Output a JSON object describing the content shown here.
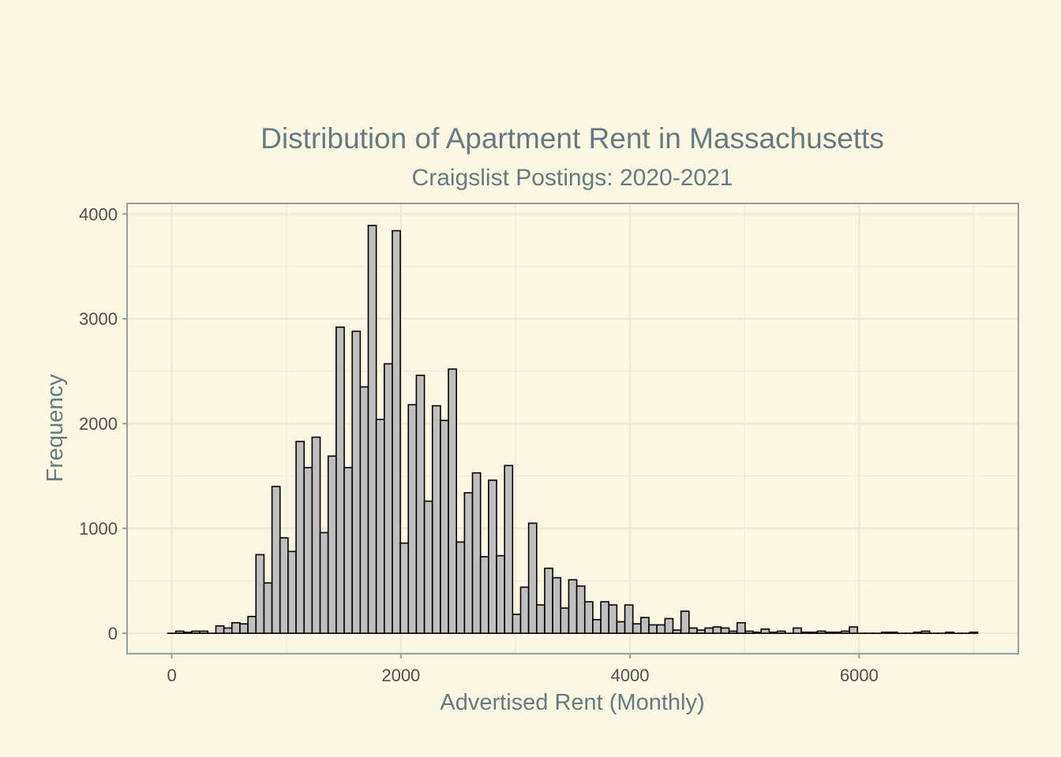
{
  "chart_data": {
    "type": "bar",
    "title": "Distribution of Apartment Rent in Massachusetts",
    "subtitle": "Craigslist Postings: 2020-2021",
    "xlabel": "Advertised Rent (Monthly)",
    "ylabel": "Frequency",
    "xlim": [
      -390,
      7390
    ],
    "ylim": [
      -195,
      4100
    ],
    "x_ticks": [
      0,
      2000,
      4000,
      6000
    ],
    "y_ticks": [
      0,
      1000,
      2000,
      3000,
      4000
    ],
    "grid": true,
    "bin_width": 70,
    "bin_start": -35,
    "values": [
      0,
      20,
      10,
      20,
      20,
      0,
      70,
      50,
      100,
      90,
      160,
      750,
      480,
      1400,
      910,
      780,
      1830,
      1580,
      1870,
      960,
      1690,
      2920,
      1580,
      2880,
      2350,
      3890,
      2040,
      2570,
      3840,
      860,
      2180,
      2460,
      1260,
      2170,
      2030,
      2520,
      870,
      1340,
      1530,
      730,
      1460,
      740,
      1600,
      180,
      440,
      1050,
      270,
      620,
      530,
      240,
      510,
      450,
      300,
      130,
      300,
      270,
      110,
      270,
      90,
      150,
      80,
      80,
      140,
      30,
      210,
      50,
      30,
      50,
      60,
      50,
      20,
      100,
      20,
      10,
      40,
      10,
      20,
      0,
      50,
      10,
      10,
      20,
      10,
      10,
      20,
      60,
      0,
      0,
      0,
      10,
      10,
      0,
      0,
      10,
      20,
      0,
      0,
      10,
      0,
      0,
      10
    ],
    "fill": "#bebebe",
    "stroke": "#000000",
    "background": "#fdf6e3",
    "panel_border": "#93a1a1",
    "grid_color": "#eee8d5"
  }
}
